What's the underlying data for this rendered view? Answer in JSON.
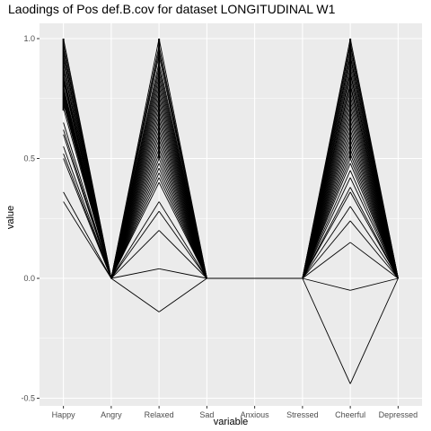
{
  "chart_data": {
    "type": "line",
    "title": "Laodings of Pos def.B.cov for dataset LONGITUDINAL W1",
    "xlabel": "variable",
    "ylabel": "value",
    "categories": [
      "Happy",
      "Angry",
      "Relaxed",
      "Sad",
      "Anxious",
      "Stressed",
      "Cheerful",
      "Depressed"
    ],
    "ylim": [
      -0.5,
      1.0
    ],
    "yticks": [
      -0.5,
      0.0,
      0.5,
      1.0
    ],
    "ytick_labels": [
      "-0.5",
      "0.0",
      "0.5",
      "1.0"
    ],
    "grid": true,
    "background": "#ebebeb",
    "gridline_color": "#ffffff",
    "line_color": "#000000",
    "profile_values": {
      "Happy": [
        1.0,
        0.98,
        0.96,
        0.95,
        0.93,
        0.92,
        0.9,
        0.88,
        0.87,
        0.85,
        0.84,
        0.83,
        0.82,
        0.8,
        0.79,
        0.78,
        0.77,
        0.76,
        0.75,
        0.74,
        0.73,
        0.71,
        0.65,
        0.62,
        0.6,
        0.55,
        0.52,
        0.5,
        0.36,
        0.32
      ],
      "Relaxed": [
        1.0,
        0.97,
        0.95,
        0.93,
        0.9,
        0.88,
        0.86,
        0.84,
        0.82,
        0.8,
        0.78,
        0.76,
        0.74,
        0.72,
        0.7,
        0.68,
        0.66,
        0.64,
        0.62,
        0.6,
        0.58,
        0.56,
        0.54,
        0.52,
        0.5,
        0.48,
        0.46,
        0.44,
        0.42,
        0.4,
        0.32,
        0.28,
        0.2,
        0.04,
        -0.14
      ],
      "Cheerful": [
        1.0,
        0.98,
        0.97,
        0.95,
        0.93,
        0.92,
        0.9,
        0.88,
        0.86,
        0.85,
        0.83,
        0.81,
        0.8,
        0.78,
        0.76,
        0.74,
        0.72,
        0.7,
        0.68,
        0.66,
        0.64,
        0.62,
        0.6,
        0.58,
        0.56,
        0.54,
        0.52,
        0.5,
        0.48,
        0.45,
        0.42,
        0.38,
        0.36,
        0.3,
        0.24,
        0.15,
        -0.05,
        -0.44
      ]
    }
  }
}
